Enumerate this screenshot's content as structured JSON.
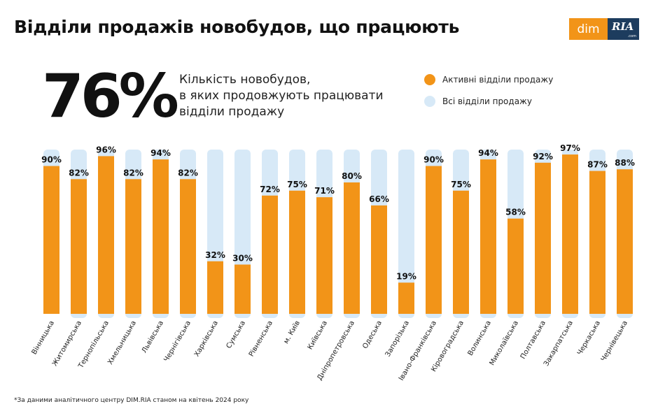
{
  "title": "Відділи продажів новобудов, що працюють",
  "logo": {
    "left": "dim",
    "right": "RIA",
    "right_small": ".com"
  },
  "headline": {
    "percent": "76%",
    "description_lines": [
      "Кількість новобудов,",
      "в яких продовжують працювати",
      "відділи продажу"
    ]
  },
  "legend": [
    {
      "label": "Активні відділи продажу",
      "color": "#F29418"
    },
    {
      "label": "Всі відділи продажу",
      "color": "#D7E9F7"
    }
  ],
  "footnote": "*За даними аналітичного центру DIM.RIA станом на квітень 2024 року",
  "chart_data": {
    "type": "bar",
    "title": "",
    "xlabel": "",
    "ylabel": "",
    "ylim": [
      0,
      100
    ],
    "grid": false,
    "value_suffix": "%",
    "categories": [
      "Вінницька",
      "Житомирська",
      "Тернопільська",
      "Хмельницька",
      "Львівська",
      "Чернігівська",
      "Харківська",
      "Сумська",
      "Рівненська",
      "м. Київ",
      "Київська",
      "Дніпропетровська",
      "Одеська",
      "Запорізька",
      "Івано-Франківська",
      "Кіровоградська",
      "Волинська",
      "Миколаївська",
      "Полтавська",
      "Закарпатська",
      "Черкаська",
      "Чернівецька"
    ],
    "series": [
      {
        "name": "Активні відділи продажу",
        "values": [
          90,
          82,
          96,
          82,
          94,
          82,
          32,
          30,
          72,
          75,
          71,
          80,
          66,
          19,
          90,
          75,
          94,
          58,
          92,
          97,
          87,
          88
        ],
        "color": "#F29418"
      },
      {
        "name": "Всі відділи продажу",
        "values": [
          100,
          100,
          100,
          100,
          100,
          100,
          100,
          100,
          100,
          100,
          100,
          100,
          100,
          100,
          100,
          100,
          100,
          100,
          100,
          100,
          100,
          100
        ],
        "color": "#D7E9F7"
      }
    ]
  }
}
